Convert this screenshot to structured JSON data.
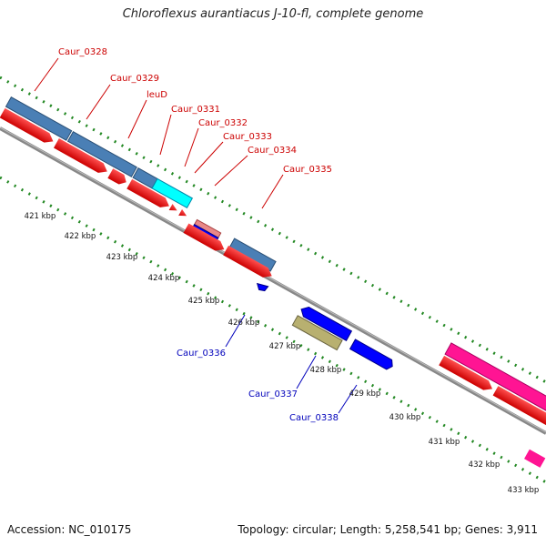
{
  "title": "Chloroflexus aurantiacus J-10-fl, complete genome",
  "footer": {
    "accession": "Accession: NC_010175",
    "stats": "Topology: circular; Length: 5,258,541 bp; Genes: 3,911"
  },
  "ticks": [
    "421 kbp",
    "422 kbp",
    "423 kbp",
    "424 kbp",
    "425 kbp",
    "426 kbp",
    "427 kbp",
    "428 kbp",
    "429 kbp",
    "430 kbp",
    "431 kbp",
    "432 kbp",
    "433 kbp"
  ],
  "forward_labels": [
    "Caur_0328",
    "Caur_0329",
    "leuD",
    "Caur_0331",
    "Caur_0332",
    "Caur_0333",
    "Caur_0334",
    "Caur_0335"
  ],
  "reverse_labels": [
    "Caur_0336",
    "Caur_0337",
    "Caur_0338"
  ],
  "colors": {
    "forward_label": "#cc0000",
    "reverse_label": "#0000bb",
    "tick": "#228822",
    "cds": "#ff0000",
    "gene_blue": "#4a7fb5",
    "gene_cyan": "#00ffff",
    "reverse_gene": "#0000ff",
    "pseudo": "#b8b070",
    "magenta": "#ff1493",
    "backbone": "#888888"
  }
}
